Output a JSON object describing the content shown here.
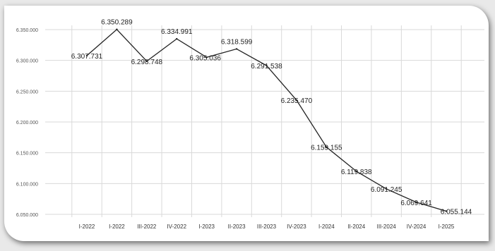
{
  "chart_data": {
    "type": "line",
    "title": "",
    "xlabel": "",
    "ylabel": "",
    "categories": [
      "I-2022",
      "I-2022",
      "III-2022",
      "IV-2022",
      "I-2023",
      "II-2023",
      "III-2023",
      "IV-2023",
      "I-2024",
      "II-2024",
      "III-2024",
      "IV-2024",
      "I-2025"
    ],
    "series": [
      {
        "values": [
          6307731,
          6350289,
          6298748,
          6334991,
          6305036,
          6318599,
          6291538,
          6235470,
          6159155,
          6119838,
          6091245,
          6069641,
          6055144
        ],
        "labels": [
          "6.307.731",
          "6.350.289",
          "6.298.748",
          "6.334.991",
          "6.305.036",
          "6.318.599",
          "6.291.538",
          "6.235.470",
          "6.159.155",
          "6.119.838",
          "6.091.245",
          "6.069.641",
          "6.055.144"
        ]
      }
    ],
    "ylim": [
      6050000,
      6350000
    ],
    "yticks": [
      6050000,
      6100000,
      6150000,
      6200000,
      6250000,
      6300000,
      6350000
    ],
    "ytick_labels": [
      "6.050.000",
      "6.100.000",
      "6.150.000",
      "6.200.000",
      "6.250.000",
      "6.300.000",
      "6.350.000"
    ],
    "grid": true,
    "line_color": "#222222",
    "grid_color": "#d9d9d9"
  }
}
